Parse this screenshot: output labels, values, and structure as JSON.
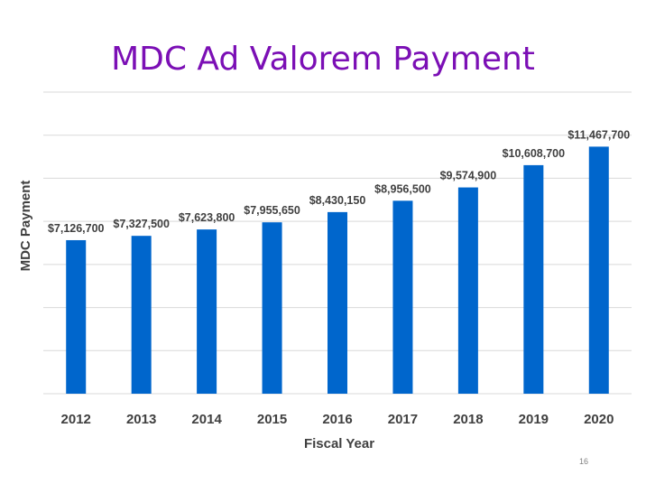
{
  "slide": {
    "title": "MDC Ad Valorem Payment",
    "title_color": "#7B0FB5",
    "page_number": "16"
  },
  "colors": {
    "bar": "#0066CC",
    "gridline": "#D9D9D9",
    "text": "#404040"
  },
  "chart_data": {
    "type": "bar",
    "title": "",
    "xlabel": "Fiscal Year",
    "ylabel": "MDC Payment",
    "categories": [
      "2012",
      "2013",
      "2014",
      "2015",
      "2016",
      "2017",
      "2018",
      "2019",
      "2020"
    ],
    "values": [
      7126700,
      7327500,
      7623800,
      7955650,
      8430150,
      8956500,
      9574900,
      10608700,
      11467700
    ],
    "data_labels": [
      "$7,126,700",
      "$7,327,500",
      "$7,623,800",
      "$7,955,650",
      "$8,430,150",
      "$8,956,500",
      "$9,574,900",
      "$10,608,700",
      "$11,467,700"
    ],
    "ylim": [
      0,
      14000000
    ],
    "y_gridline_step": 2000000,
    "y_tick_labels_visible": false,
    "grid": true,
    "legend": "none"
  }
}
